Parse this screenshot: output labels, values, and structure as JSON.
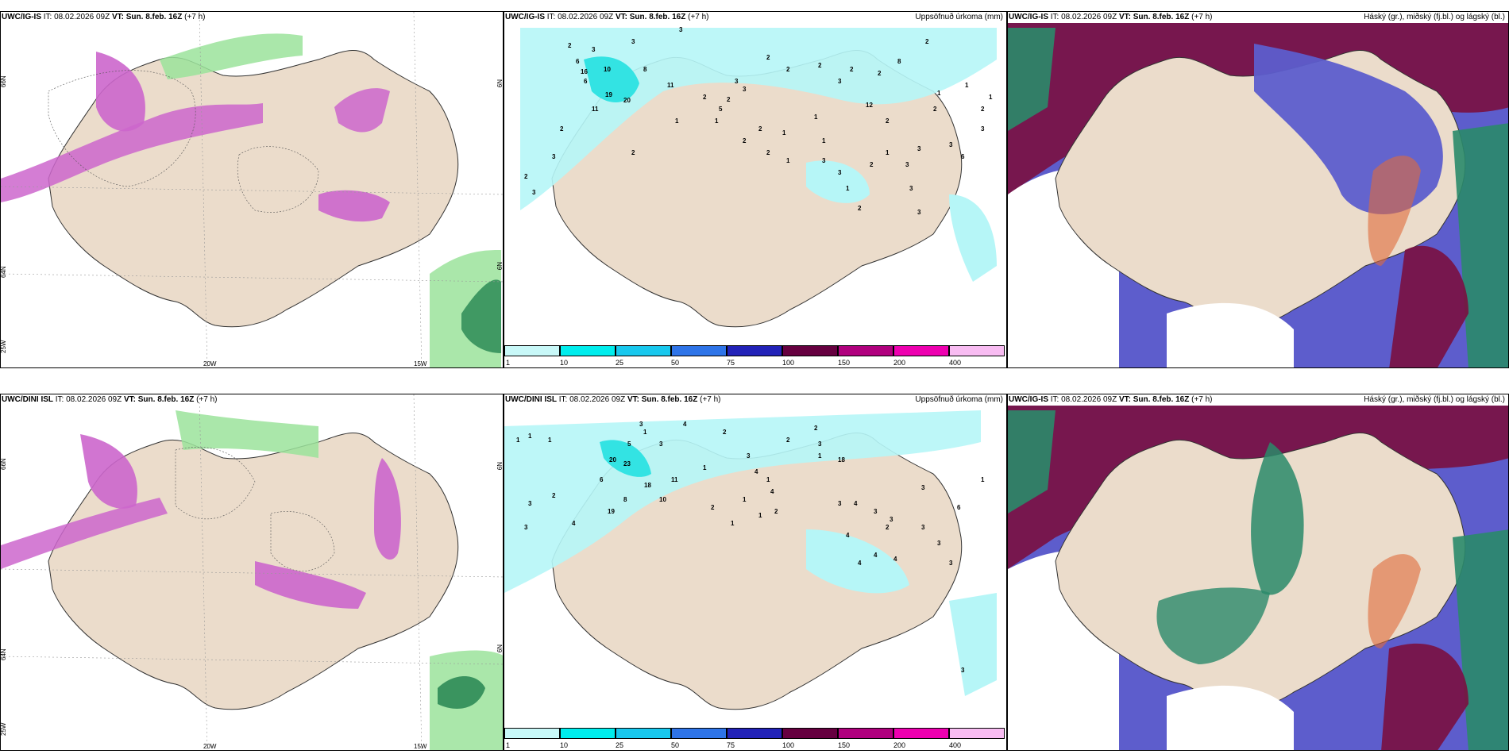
{
  "colors": {
    "land": "#ebdccb",
    "sea": "#ffffff",
    "precip_light": "#b6f6f7",
    "precip_mid": "#33e3e3",
    "precip_dark": "#00c0d8",
    "magenta": "#cc66cc",
    "green": "#9be39b",
    "cloud_high": "#7a1040",
    "cloud_mid": "#5757c8",
    "cloud_low": "#2a8a6a"
  },
  "panels": [
    {
      "id": "top-left",
      "model": "UWC/IG-IS",
      "it_label": "IT:",
      "it_value": "08.02.2026 09Z",
      "vt_label": "VT:",
      "vt_value": "Sun. 8.feb. 16Z",
      "lead": "(+7 h)",
      "right_label": "",
      "axis_labels": [
        "66N",
        "64N",
        "25W",
        "20W",
        "15W",
        "N9",
        "N9"
      ]
    },
    {
      "id": "top-middle",
      "model": "UWC/IG-IS",
      "it_label": "IT:",
      "it_value": "08.02.2026 09Z",
      "vt_label": "VT:",
      "vt_value": "Sun. 8.feb. 16Z",
      "lead": "(+7 h)",
      "right_label": "Uppsöfnuð úrkoma (mm)",
      "colorbar": [
        "1",
        "10",
        "25",
        "50",
        "75",
        "100",
        "150",
        "200",
        "400"
      ],
      "values": [
        "3",
        "3",
        "2",
        "3",
        "8",
        "6",
        "16",
        "10",
        "19",
        "20",
        "11",
        "2",
        "5",
        "2",
        "6",
        "2",
        "11",
        "3",
        "2",
        "3",
        "3",
        "2",
        "2",
        "2",
        "3",
        "12",
        "1",
        "2",
        "2",
        "1",
        "2",
        "2",
        "2",
        "3",
        "3",
        "1",
        "2",
        "2",
        "1",
        "1",
        "2",
        "1",
        "3",
        "3",
        "3",
        "6",
        "2",
        "1",
        "1",
        "3",
        "3",
        "2",
        "8",
        "1",
        "2",
        "1",
        "1",
        "3",
        "2",
        "3"
      ]
    },
    {
      "id": "top-right",
      "model": "UWC/IG-IS",
      "it_label": "IT:",
      "it_value": "08.02.2026 09Z",
      "vt_label": "VT:",
      "vt_value": "Sun. 8.feb. 16Z",
      "lead": "(+7 h)",
      "right_label": "Háský (gr.), miðský (fj.bl.) og lágský (bl.)"
    },
    {
      "id": "bottom-left",
      "model": "UWC/DINI ISL",
      "it_label": "IT:",
      "it_value": "08.02.2026 09Z",
      "vt_label": "VT:",
      "vt_value": "Sun. 8.feb. 16Z",
      "lead": "(+7 h)",
      "right_label": "",
      "axis_labels": [
        "66N",
        "64N",
        "25W",
        "20W",
        "15W",
        "N9",
        "N9"
      ]
    },
    {
      "id": "bottom-middle",
      "model": "UWC/DINI ISL",
      "it_label": "IT:",
      "it_value": "08.02.2026 09Z",
      "vt_label": "VT:",
      "vt_value": "Sun. 8.feb. 16Z",
      "lead": "(+7 h)",
      "right_label": "Uppsöfnuð úrkoma (mm)",
      "colorbar": [
        "1",
        "10",
        "25",
        "50",
        "75",
        "100",
        "150",
        "200",
        "400"
      ],
      "values": [
        "1",
        "3",
        "3",
        "2",
        "1",
        "1",
        "4",
        "5",
        "6",
        "20",
        "23",
        "18",
        "10",
        "8",
        "19",
        "11",
        "1",
        "2",
        "1",
        "3",
        "1",
        "3",
        "4",
        "2",
        "3",
        "4",
        "1",
        "4",
        "1",
        "1",
        "2",
        "2",
        "2",
        "1",
        "18",
        "3",
        "3",
        "4",
        "3",
        "3",
        "3",
        "6",
        "2",
        "4",
        "4",
        "4",
        "4",
        "3",
        "3",
        "3",
        "1",
        "3"
      ]
    },
    {
      "id": "bottom-right",
      "model": "UWC/IG-IS",
      "it_label": "IT:",
      "it_value": "08.02.2026 09Z",
      "vt_label": "VT:",
      "vt_value": "Sun. 8.feb. 16Z",
      "lead": "(+7 h)",
      "right_label": "Háský (gr.), miðský (fj.bl.) og lágský (bl.)"
    }
  ]
}
